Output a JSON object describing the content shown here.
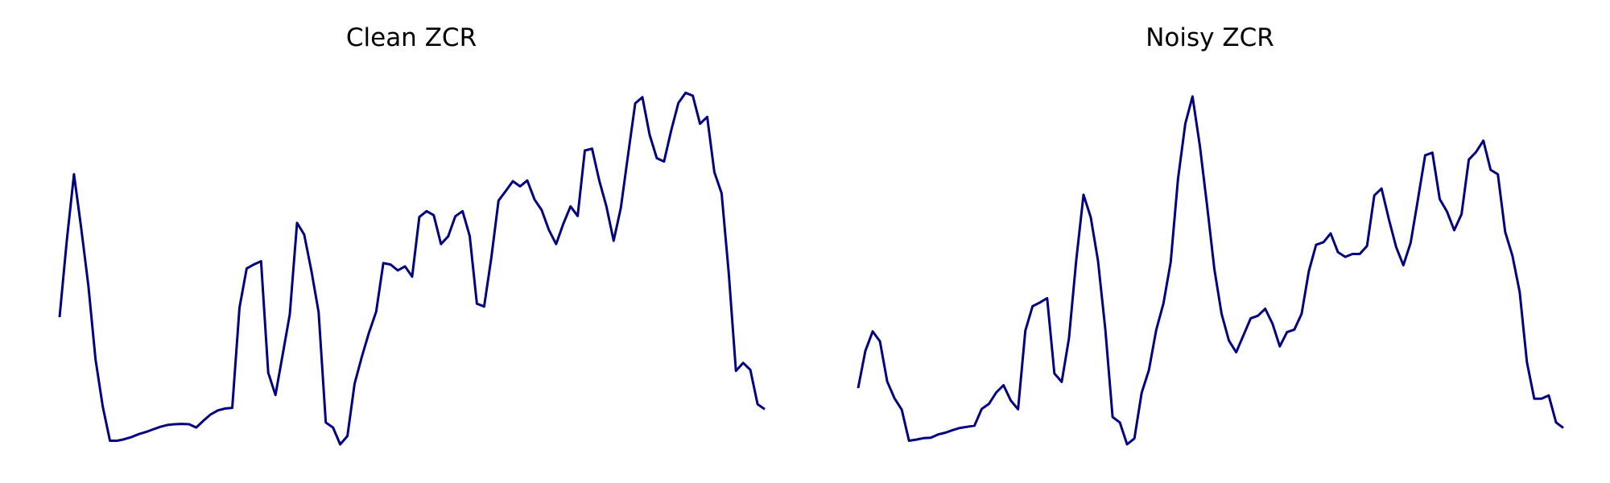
{
  "chart_data": [
    {
      "type": "line",
      "title": "Clean ZCR",
      "xlabel": "",
      "ylabel": "",
      "axes_visible": false,
      "grid": false,
      "line_color": "#000080",
      "ylim": [
        0.0,
        1.0
      ],
      "series": [
        {
          "values": [
            0.348,
            0.556,
            0.739,
            0.593,
            0.434,
            0.232,
            0.104,
            0.01,
            0.01,
            0.014,
            0.02,
            0.028,
            0.034,
            0.041,
            0.048,
            0.053,
            0.055,
            0.056,
            0.055,
            0.046,
            0.065,
            0.082,
            0.093,
            0.098,
            0.1,
            0.374,
            0.481,
            0.492,
            0.501,
            0.196,
            0.135,
            0.245,
            0.356,
            0.606,
            0.574,
            0.474,
            0.362,
            0.06,
            0.046,
            0.0,
            0.023,
            0.166,
            0.239,
            0.306,
            0.363,
            0.496,
            0.492,
            0.476,
            0.487,
            0.459,
            0.622,
            0.638,
            0.627,
            0.548,
            0.569,
            0.624,
            0.638,
            0.57,
            0.385,
            0.377,
            0.51,
            0.667,
            0.693,
            0.72,
            0.706,
            0.722,
            0.67,
            0.641,
            0.587,
            0.548,
            0.603,
            0.651,
            0.625,
            0.804,
            0.809,
            0.722,
            0.651,
            0.557,
            0.647,
            0.792,
            0.933,
            0.95,
            0.847,
            0.783,
            0.774,
            0.859,
            0.934,
            0.962,
            0.954,
            0.877,
            0.896,
            0.745,
            0.687,
            0.468,
            0.201,
            0.223,
            0.204,
            0.11,
            0.096
          ]
        }
      ]
    },
    {
      "type": "line",
      "title": "Noisy ZCR",
      "xlabel": "",
      "ylabel": "",
      "axes_visible": false,
      "grid": false,
      "line_color": "#000080",
      "ylim": [
        0.0,
        1.0
      ],
      "series": [
        {
          "values": [
            0.154,
            0.256,
            0.309,
            0.282,
            0.172,
            0.126,
            0.095,
            0.01,
            0.013,
            0.017,
            0.018,
            0.027,
            0.032,
            0.039,
            0.045,
            0.048,
            0.051,
            0.097,
            0.111,
            0.142,
            0.162,
            0.12,
            0.096,
            0.311,
            0.378,
            0.388,
            0.4,
            0.194,
            0.171,
            0.29,
            0.503,
            0.683,
            0.621,
            0.502,
            0.314,
            0.075,
            0.06,
            0.0,
            0.016,
            0.141,
            0.203,
            0.313,
            0.386,
            0.499,
            0.727,
            0.877,
            0.952,
            0.817,
            0.653,
            0.48,
            0.357,
            0.284,
            0.252,
            0.298,
            0.345,
            0.352,
            0.371,
            0.33,
            0.268,
            0.307,
            0.314,
            0.357,
            0.474,
            0.546,
            0.553,
            0.577,
            0.526,
            0.513,
            0.521,
            0.521,
            0.543,
            0.681,
            0.7,
            0.616,
            0.54,
            0.49,
            0.552,
            0.67,
            0.791,
            0.798,
            0.671,
            0.637,
            0.586,
            0.63,
            0.779,
            0.8,
            0.831,
            0.751,
            0.739,
            0.581,
            0.516,
            0.417,
            0.225,
            0.125,
            0.125,
            0.134,
            0.06,
            0.045
          ]
        }
      ]
    }
  ]
}
